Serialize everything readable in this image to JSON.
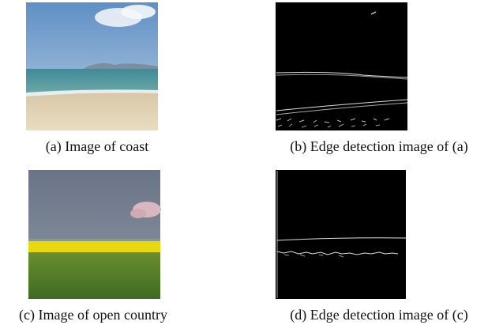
{
  "figure": {
    "panels": [
      {
        "caption": "(a) Image of coast"
      },
      {
        "caption": "(b) Edge detection image of (a)"
      },
      {
        "caption": "(c) Image of open country"
      },
      {
        "caption": "(d) Edge detection image of (c)"
      }
    ]
  }
}
